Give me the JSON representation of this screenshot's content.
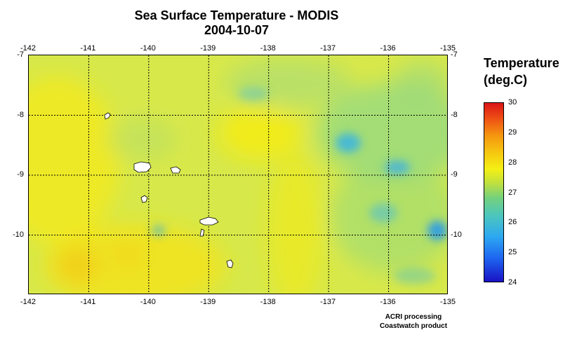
{
  "title": "Sea Surface Temperature - MODIS",
  "date": "2004-10-07",
  "colorbar": {
    "title_line1": "Temperature",
    "title_line2": "(deg.C)",
    "ticks": [
      "30",
      "29",
      "28",
      "27",
      "26",
      "25",
      "24"
    ],
    "min": 24,
    "max": 30,
    "colors": [
      "#1a12c4",
      "#2ca7f2",
      "#74d17c",
      "#f4f014",
      "#f49510",
      "#dc1416"
    ]
  },
  "map": {
    "lon_labels": [
      "-142",
      "-141",
      "-140",
      "-139",
      "-138",
      "-137",
      "-136",
      "-135"
    ],
    "lat_labels": [
      "-7",
      "-8",
      "-9",
      "-10"
    ],
    "lon_range": [
      -142,
      -135
    ],
    "lat_range": [
      -11,
      -7
    ],
    "gridlines": true,
    "land_color": "#ffffff",
    "base_color": "#d7e84a"
  },
  "credit": {
    "line1": "ACRI processing",
    "line2": "Coastwatch product"
  }
}
